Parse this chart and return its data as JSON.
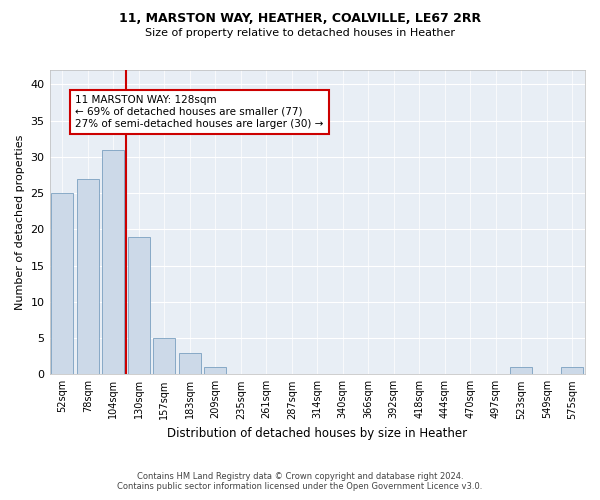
{
  "title1": "11, MARSTON WAY, HEATHER, COALVILLE, LE67 2RR",
  "title2": "Size of property relative to detached houses in Heather",
  "xlabel": "Distribution of detached houses by size in Heather",
  "ylabel": "Number of detached properties",
  "bar_labels": [
    "52sqm",
    "78sqm",
    "104sqm",
    "130sqm",
    "157sqm",
    "183sqm",
    "209sqm",
    "235sqm",
    "261sqm",
    "287sqm",
    "314sqm",
    "340sqm",
    "366sqm",
    "392sqm",
    "418sqm",
    "444sqm",
    "470sqm",
    "497sqm",
    "523sqm",
    "549sqm",
    "575sqm"
  ],
  "bar_values": [
    25,
    27,
    31,
    19,
    5,
    3,
    1,
    0,
    0,
    0,
    0,
    0,
    0,
    0,
    0,
    0,
    0,
    0,
    1,
    0,
    1
  ],
  "bar_color": "#ccd9e8",
  "bar_edge_color": "#7aa0c0",
  "vline_color": "#cc0000",
  "annotation_lines": [
    "11 MARSTON WAY: 128sqm",
    "← 69% of detached houses are smaller (77)",
    "27% of semi-detached houses are larger (30) →"
  ],
  "annotation_box_color": "#cc0000",
  "ylim": [
    0,
    42
  ],
  "yticks": [
    0,
    5,
    10,
    15,
    20,
    25,
    30,
    35,
    40
  ],
  "footer1": "Contains HM Land Registry data © Crown copyright and database right 2024.",
  "footer2": "Contains public sector information licensed under the Open Government Licence v3.0.",
  "plot_bg_color": "#e8eef5"
}
